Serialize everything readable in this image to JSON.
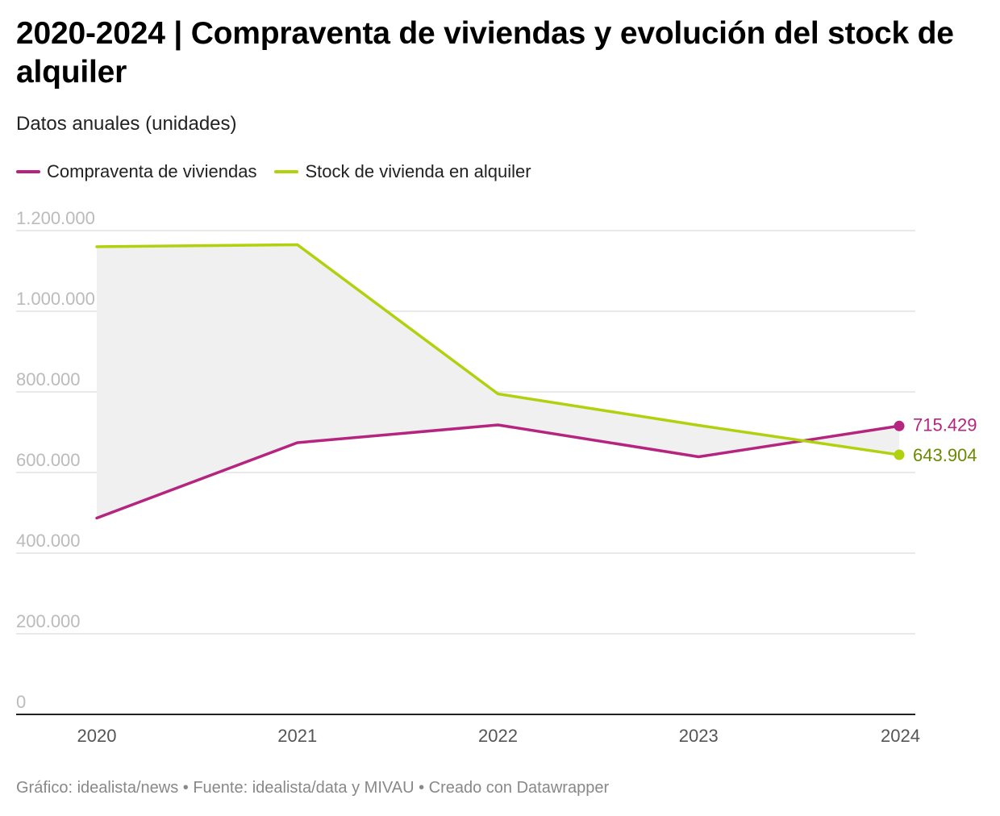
{
  "header": {
    "title": "2020-2024 | Compraventa de viviendas y evolución del stock de alquiler",
    "subtitle": "Datos anuales (unidades)"
  },
  "footer": {
    "text": "Gráfico: idealista/news • Fuente: idealista/data y MIVAU • Creado con Datawrapper"
  },
  "colors": {
    "compraventa": "#b5257f",
    "stock": "#b0d10e",
    "stock_label": "#6b8a00",
    "area_fill": "#f0f0f0",
    "grid": "#e2e2e2",
    "axis": "#222222"
  },
  "chart_data": {
    "type": "line",
    "title": "2020-2024 | Compraventa de viviendas y evolución del stock de alquiler",
    "subtitle": "Datos anuales (unidades)",
    "categories": [
      "2020",
      "2021",
      "2022",
      "2023",
      "2024"
    ],
    "y_ticks": [
      0,
      200000,
      400000,
      600000,
      800000,
      1000000,
      1200000
    ],
    "y_tick_labels": [
      "0",
      "200.000",
      "400.000",
      "600.000",
      "800.000",
      "1.000.000",
      "1.200.000"
    ],
    "ylim": [
      0,
      1200000
    ],
    "grid": true,
    "legend_position": "top-left",
    "range_area_between_series": true,
    "series": [
      {
        "name": "Compraventa de viviendas",
        "values": [
          487000,
          674000,
          718000,
          639000,
          715429
        ],
        "end_label": "715.429"
      },
      {
        "name": "Stock de vivienda en alquiler",
        "values": [
          1160000,
          1165000,
          795000,
          717000,
          643904
        ],
        "end_label": "643.904"
      }
    ]
  }
}
